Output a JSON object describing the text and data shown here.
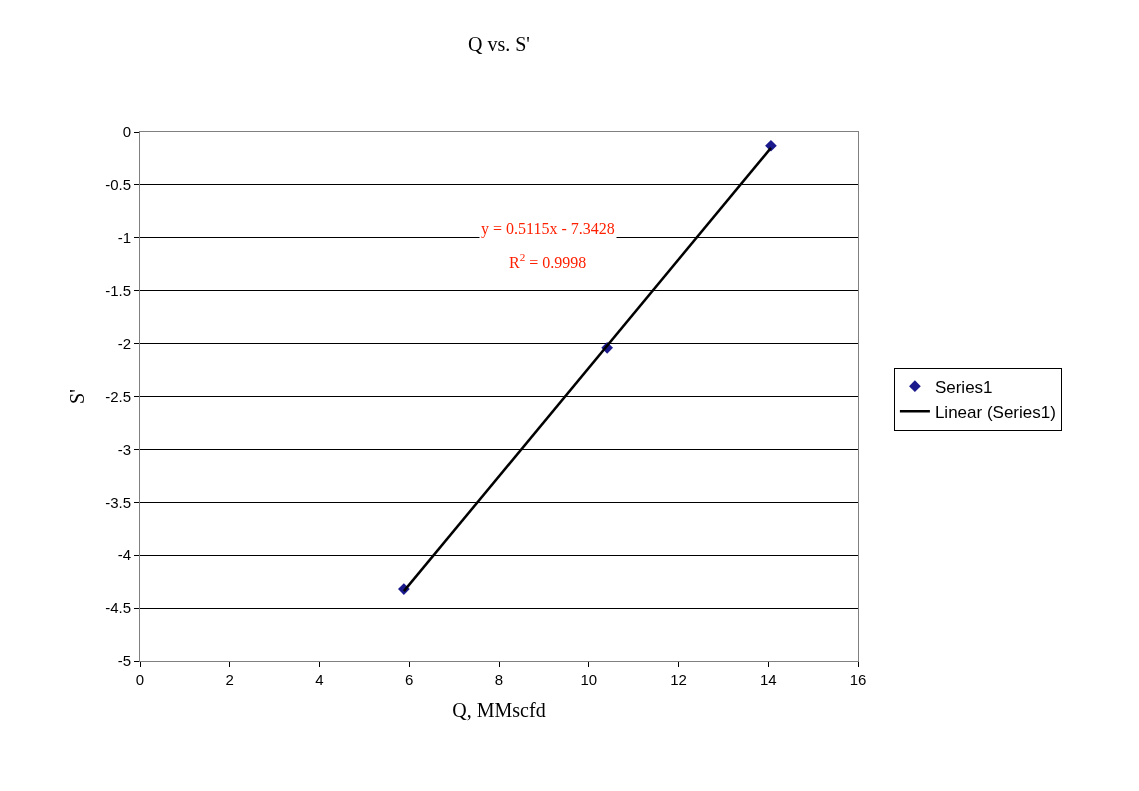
{
  "chart_data": {
    "type": "scatter",
    "title": "Q vs. S'",
    "xlabel": "Q, MMscfd",
    "ylabel": "S'",
    "series": [
      {
        "name": "Series1",
        "marker": "diamond",
        "color": "#1a1a8c",
        "x": [
          5.88,
          10.41,
          14.06
        ],
        "values": [
          -4.32,
          -2.04,
          -0.13
        ]
      },
      {
        "name": "Linear (Series1)",
        "type": "line",
        "marker": "none",
        "line_style": "solid",
        "color": "#000000",
        "x": [
          5.88,
          14.06
        ],
        "values": [
          -4.34,
          -0.15
        ]
      }
    ],
    "annotations": [
      "y = 0.5115x - 7.3428",
      "R$^{2}$ = 0.9998"
    ],
    "xlim": [
      0,
      16
    ],
    "xticks": [
      0,
      2,
      4,
      6,
      8,
      10,
      12,
      14,
      16
    ],
    "ylim": [
      -5,
      0
    ],
    "yticks": [
      -5,
      -4.5,
      -4,
      -3.5,
      -3,
      -2.5,
      -2,
      -1.5,
      -1,
      -0.5,
      0
    ],
    "grid": "y",
    "legend": "right"
  }
}
